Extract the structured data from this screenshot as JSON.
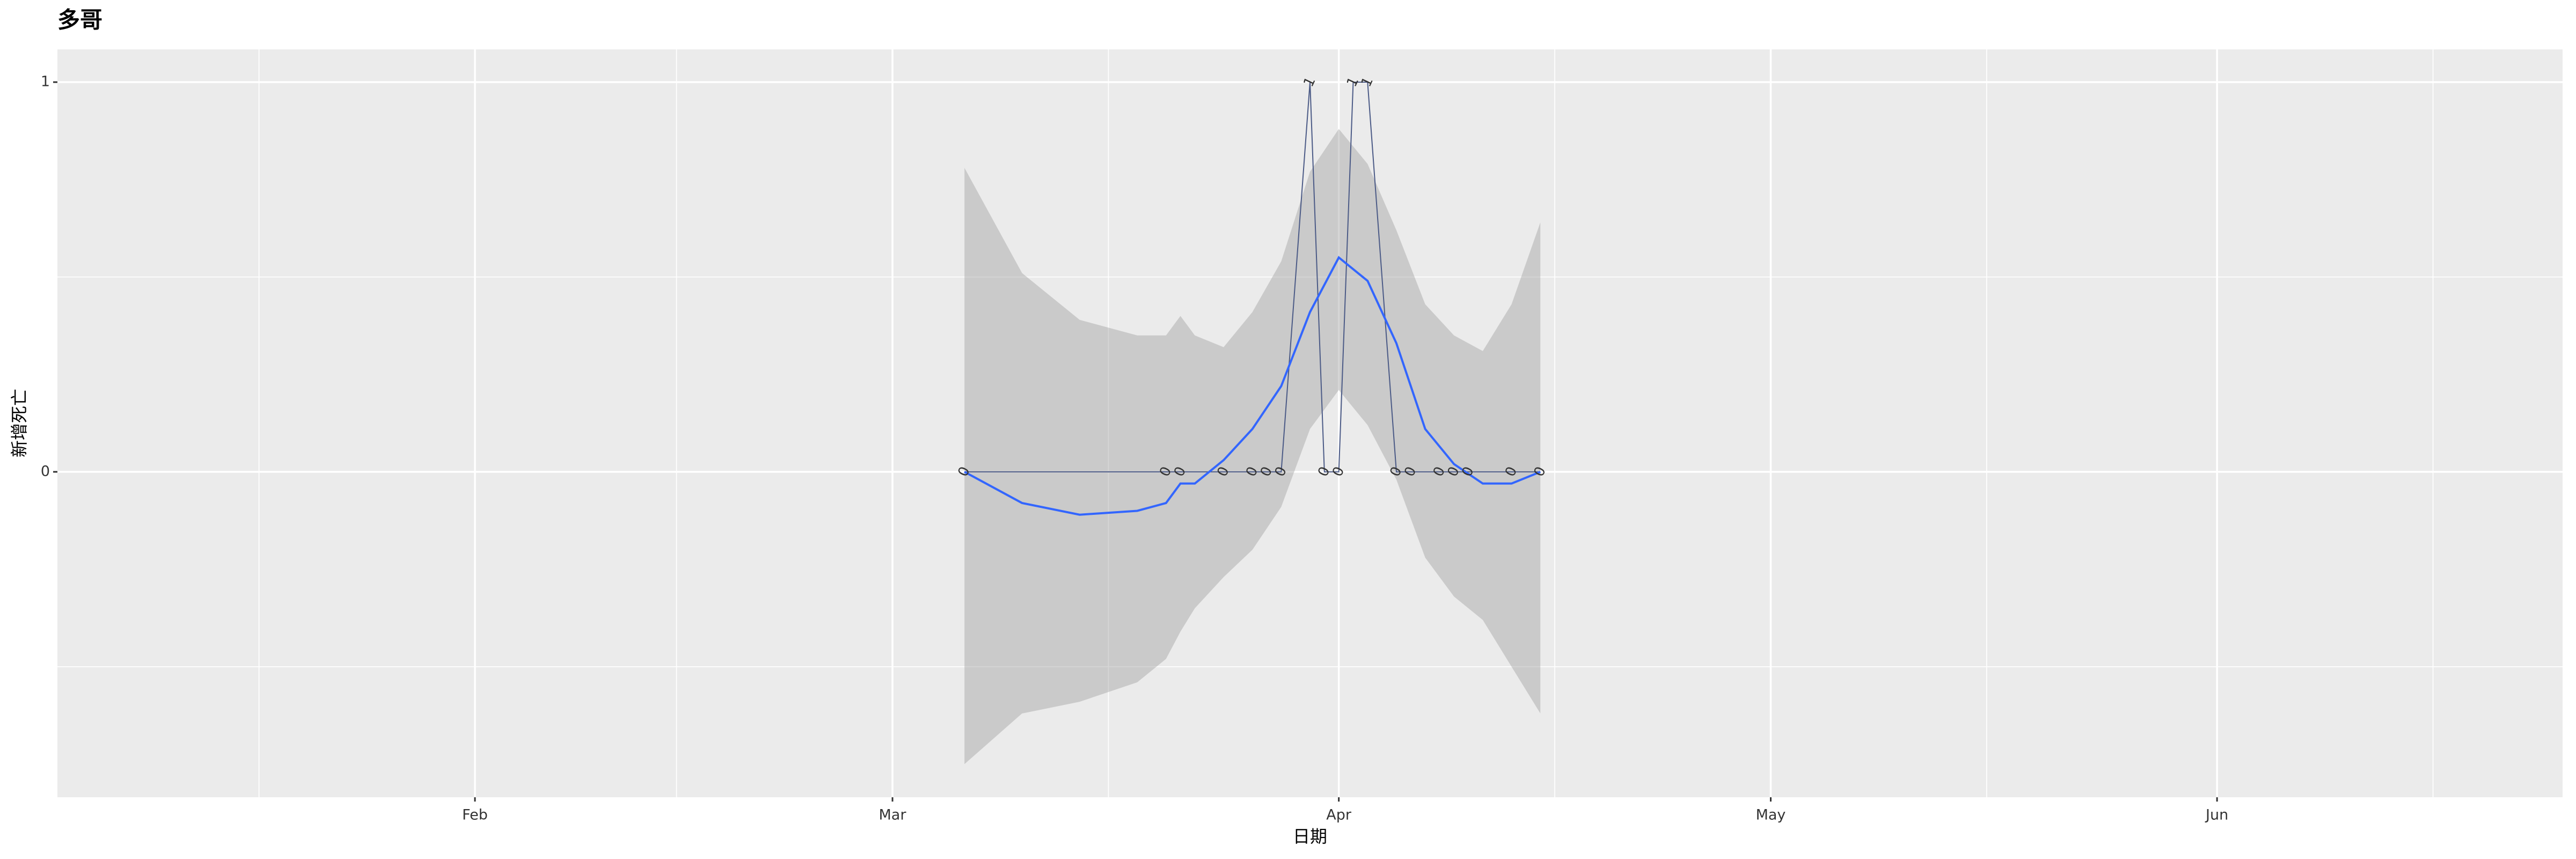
{
  "chart_data": {
    "type": "line",
    "title": "多哥",
    "x_label": "日期",
    "y_label": "新增死亡",
    "x": [
      "03-06",
      "03-20",
      "03-21",
      "03-24",
      "03-26",
      "03-27",
      "03-28",
      "03-30",
      "03-31",
      "04-01",
      "04-02",
      "04-03",
      "04-05",
      "04-06",
      "04-08",
      "04-09",
      "04-10",
      "04-13",
      "04-15"
    ],
    "values": [
      0,
      0,
      0,
      0,
      0,
      0,
      0,
      1,
      0,
      0,
      1,
      1,
      0,
      0,
      0,
      0,
      0,
      0,
      0
    ],
    "color": "#4b5a86",
    "smooth": {
      "color": "#3366ff",
      "band_color": "#999999",
      "x": [
        "03-06",
        "03-10",
        "03-14",
        "03-18",
        "03-20",
        "03-21",
        "03-22",
        "03-24",
        "03-26",
        "03-28",
        "03-30",
        "04-01",
        "04-03",
        "04-05",
        "04-07",
        "04-09",
        "04-11",
        "04-13",
        "04-15"
      ],
      "values": [
        0,
        -0.08,
        -0.11,
        -0.1,
        -0.08,
        -0.03,
        -0.03,
        0.03,
        0.11,
        0.22,
        0.41,
        0.55,
        0.49,
        0.33,
        0.11,
        0.02,
        -0.03,
        -0.03,
        0
      ],
      "upper": [
        0.78,
        0.51,
        0.39,
        0.35,
        0.35,
        0.4,
        0.35,
        0.32,
        0.41,
        0.54,
        0.77,
        0.88,
        0.79,
        0.62,
        0.43,
        0.35,
        0.31,
        0.43,
        0.64
      ],
      "lower": [
        -0.75,
        -0.62,
        -0.59,
        -0.54,
        -0.48,
        -0.41,
        -0.35,
        -0.27,
        -0.2,
        -0.09,
        0.11,
        0.21,
        0.12,
        -0.02,
        -0.22,
        -0.32,
        -0.38,
        -0.5,
        -0.62
      ]
    },
    "xlim": [
      "01-03",
      "06-25"
    ],
    "xticks": [
      {
        "value": "02-01",
        "label": "Feb"
      },
      {
        "value": "03-01",
        "label": "Mar"
      },
      {
        "value": "04-01",
        "label": "Apr"
      },
      {
        "value": "05-01",
        "label": "May"
      },
      {
        "value": "06-01",
        "label": "Jun"
      }
    ],
    "xminorticks": [
      "01-17",
      "02-15",
      "03-16",
      "04-16",
      "05-16",
      "06-16"
    ],
    "ylim": [
      -0.835,
      1.084
    ],
    "yticks": [
      0,
      1
    ],
    "yminorticks": [
      -0.5,
      0.5
    ],
    "grid": true
  }
}
